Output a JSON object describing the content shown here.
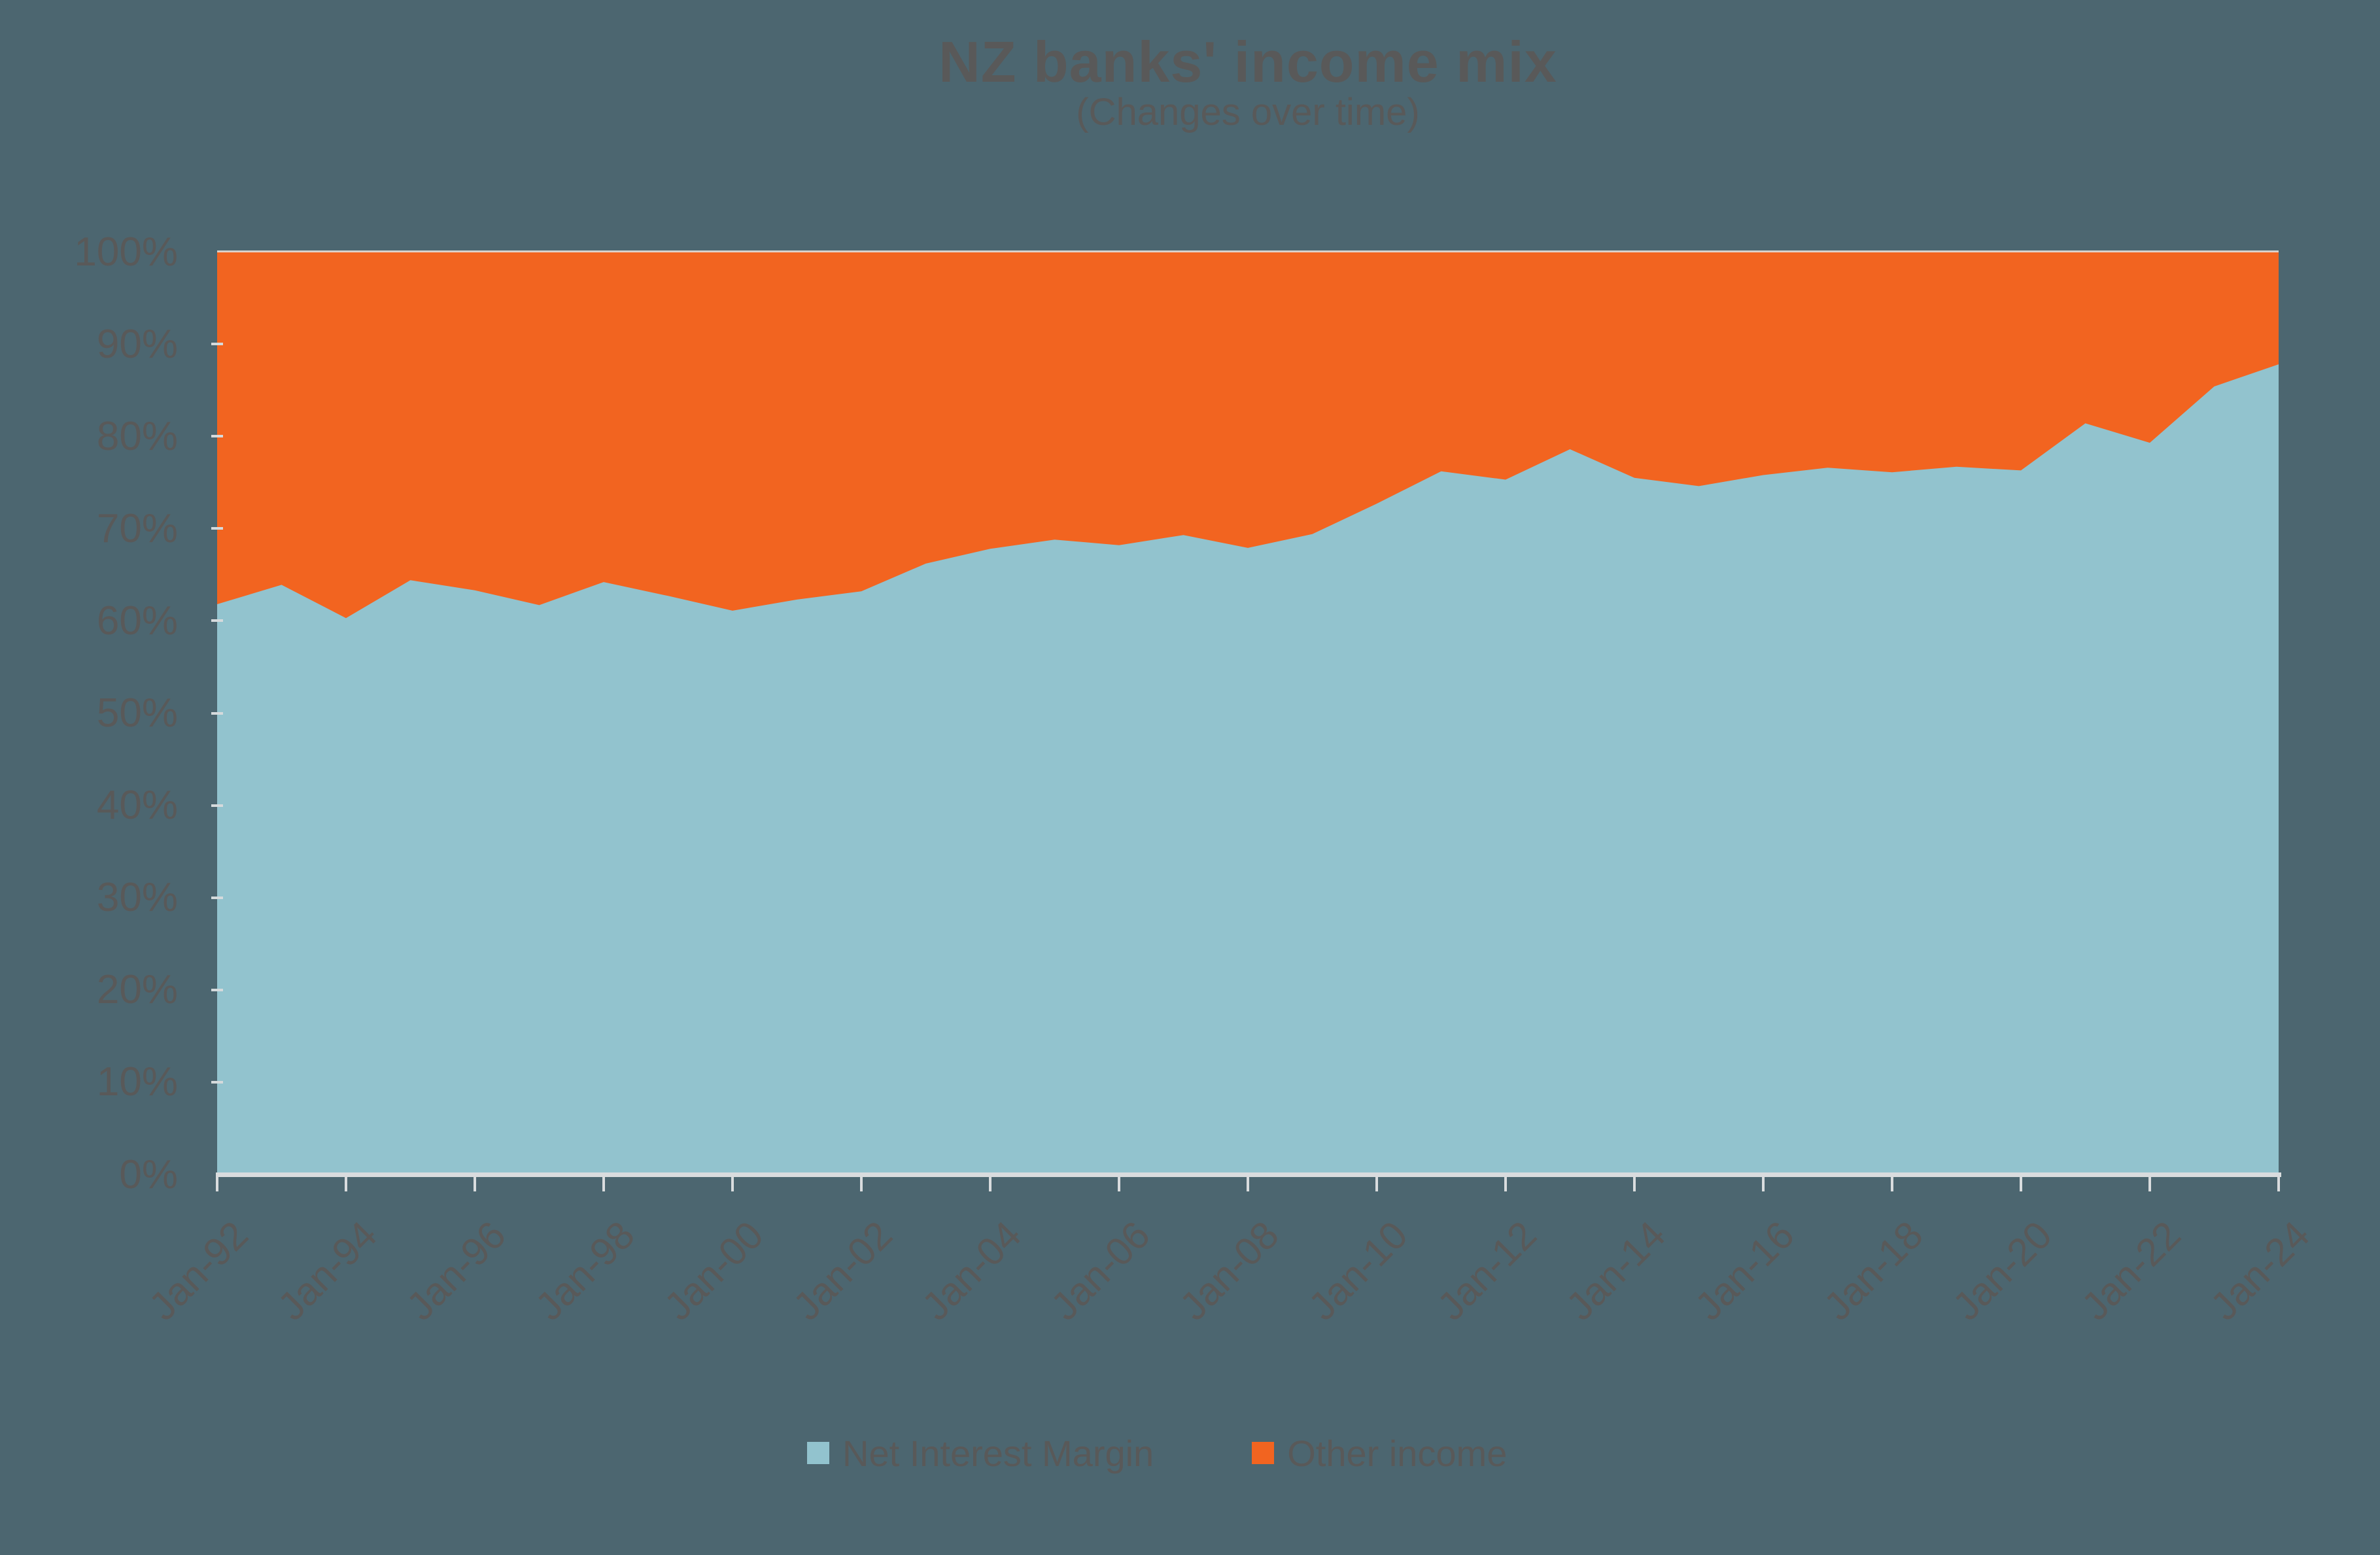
{
  "page": {
    "background_color": "#4C6670",
    "text_color": "#595959",
    "axis_color": "#D9DCDE"
  },
  "chart_data": {
    "type": "area",
    "stacked": "percent",
    "title": "NZ banks' income mix",
    "subtitle": "(Changes over time)",
    "grid": false,
    "legend_position": "bottom",
    "x": [
      "Jan-92",
      "Jan-93",
      "Jan-94",
      "Jan-95",
      "Jan-96",
      "Jan-97",
      "Jan-98",
      "Jan-99",
      "Jan-00",
      "Jan-01",
      "Jan-02",
      "Jan-03",
      "Jan-04",
      "Jan-05",
      "Jan-06",
      "Jan-07",
      "Jan-08",
      "Jan-09",
      "Jan-10",
      "Jan-11",
      "Jan-12",
      "Jan-13",
      "Jan-14",
      "Jan-15",
      "Jan-16",
      "Jan-17",
      "Jan-18",
      "Jan-19",
      "Jan-20",
      "Jan-21",
      "Jan-22",
      "Jan-23",
      "Jan-24"
    ],
    "series": [
      {
        "name": "Net Interest Margin",
        "color": "#92C3CE",
        "values": [
          61.8,
          63.9,
          60.3,
          64.4,
          63.3,
          61.7,
          64.2,
          62.7,
          61.1,
          62.3,
          63.2,
          66.2,
          67.8,
          68.8,
          68.2,
          69.3,
          67.9,
          69.4,
          72.7,
          76.2,
          75.3,
          78.6,
          75.5,
          74.6,
          75.8,
          76.6,
          76.1,
          76.7,
          76.3,
          81.4,
          79.3,
          85.4,
          87.8
        ]
      },
      {
        "name": "Other income",
        "color": "#F26420",
        "values": [
          38.2,
          36.1,
          39.7,
          35.6,
          36.7,
          38.3,
          35.8,
          37.3,
          38.9,
          37.7,
          36.8,
          33.8,
          32.2,
          31.2,
          31.8,
          30.7,
          32.1,
          30.6,
          27.3,
          23.8,
          24.7,
          21.4,
          24.5,
          25.4,
          24.2,
          23.4,
          23.9,
          23.3,
          23.7,
          18.6,
          20.7,
          14.6,
          12.2
        ]
      }
    ],
    "x_axis": {
      "tick_labels": [
        "Jan-92",
        "Jan-94",
        "Jan-96",
        "Jan-98",
        "Jan-00",
        "Jan-02",
        "Jan-04",
        "Jan-06",
        "Jan-08",
        "Jan-10",
        "Jan-12",
        "Jan-14",
        "Jan-16",
        "Jan-18",
        "Jan-20",
        "Jan-22",
        "Jan-24"
      ],
      "label_rotation_deg": -45
    },
    "y_axis": {
      "tick_labels": [
        "0%",
        "10%",
        "20%",
        "30%",
        "40%",
        "50%",
        "60%",
        "70%",
        "80%",
        "90%",
        "100%"
      ],
      "min": 0,
      "max": 100
    }
  }
}
